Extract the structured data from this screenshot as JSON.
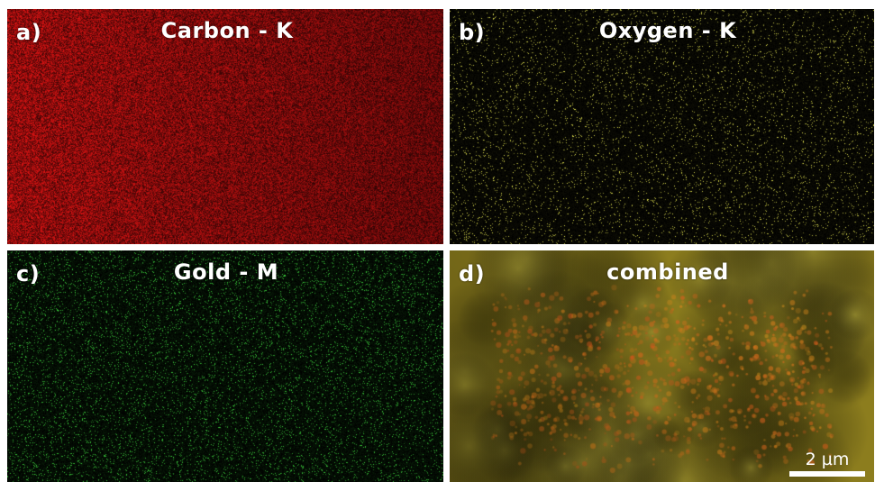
{
  "panels": [
    {
      "id": "a",
      "letter": "a)",
      "title": "Carbon - K",
      "map_color": "#d21414"
    },
    {
      "id": "b",
      "letter": "b)",
      "title": "Oxygen - K",
      "map_color": "#e6e650"
    },
    {
      "id": "c",
      "letter": "c)",
      "title": "Gold - M",
      "map_color": "#3cd23c"
    },
    {
      "id": "d",
      "letter": "d)",
      "title": "combined",
      "map_color": "#8c7d1e"
    }
  ],
  "scalebar": {
    "label": "2 µm"
  }
}
